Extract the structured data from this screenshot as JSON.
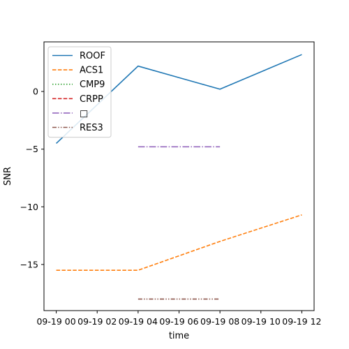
{
  "chart_data": {
    "type": "line",
    "xlabel": "time",
    "ylabel": "SNR",
    "x_tick_labels": [
      "09-19 00",
      "09-19 02",
      "09-19 04",
      "09-19 06",
      "09-19 08",
      "09-19 10",
      "09-19 12"
    ],
    "x_tick_hours": [
      0,
      2,
      4,
      6,
      8,
      10,
      12
    ],
    "xlim_hours": [
      -0.6,
      12.6
    ],
    "y_ticks": [
      0,
      -5,
      -10,
      -15
    ],
    "y_tick_labels": [
      "0",
      "−5",
      "−10",
      "−15"
    ],
    "ylim": [
      -19.0,
      4.3
    ],
    "grid": false,
    "legend_position": "top-left",
    "series": [
      {
        "name": "ROOF",
        "color": "#1f77b4",
        "style": "solid",
        "x_hours": [
          0,
          4,
          8,
          12
        ],
        "values": [
          -4.5,
          2.2,
          0.2,
          3.2
        ]
      },
      {
        "name": "ACS1",
        "color": "#ff7f0e",
        "style": "dashed",
        "x_hours": [
          0,
          4,
          8,
          12
        ],
        "values": [
          -15.5,
          -15.5,
          -13.0,
          -10.7
        ]
      },
      {
        "name": "CMP9",
        "color": "#2ca02c",
        "style": "dotted",
        "x_hours": [],
        "values": []
      },
      {
        "name": "CRPP",
        "color": "#d62728",
        "style": "dashed",
        "x_hours": [],
        "values": []
      },
      {
        "name": "□",
        "color": "#9467bd",
        "style": "dashdot",
        "x_hours": [
          4,
          8
        ],
        "values": [
          -4.8,
          -4.8
        ]
      },
      {
        "name": "RES3",
        "color": "#8c564b",
        "style": "dashdotdot",
        "x_hours": [
          4,
          8
        ],
        "values": [
          -18.0,
          -18.0
        ]
      }
    ]
  }
}
